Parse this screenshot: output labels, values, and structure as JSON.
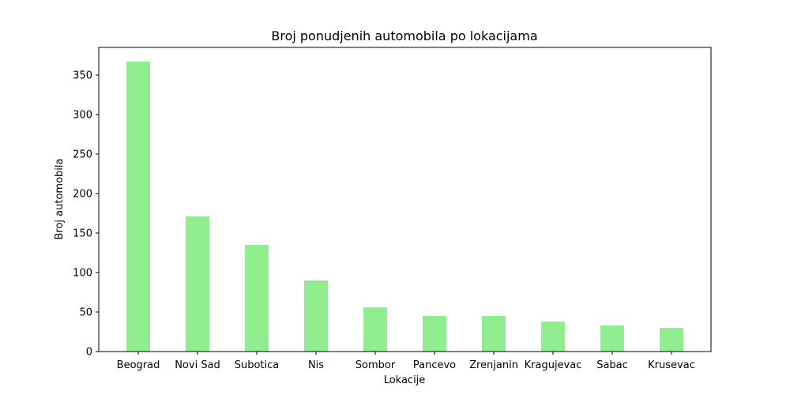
{
  "chart_data": {
    "type": "bar",
    "title": "Broj ponudjenih automobila po lokacijama",
    "xlabel": "Lokacije",
    "ylabel": "Broj automobila",
    "categories": [
      "Beograd",
      "Novi Sad",
      "Subotica",
      "Nis",
      "Sombor",
      "Pancevo",
      "Zrenjanin",
      "Kragujevac",
      "Sabac",
      "Krusevac"
    ],
    "values": [
      367,
      171,
      135,
      90,
      56,
      45,
      45,
      38,
      33,
      30
    ],
    "ylim": [
      0,
      385
    ],
    "yticks": [
      0,
      50,
      100,
      150,
      200,
      250,
      300,
      350
    ],
    "bar_color": "#90ee90",
    "grid": false,
    "legend": "none"
  }
}
